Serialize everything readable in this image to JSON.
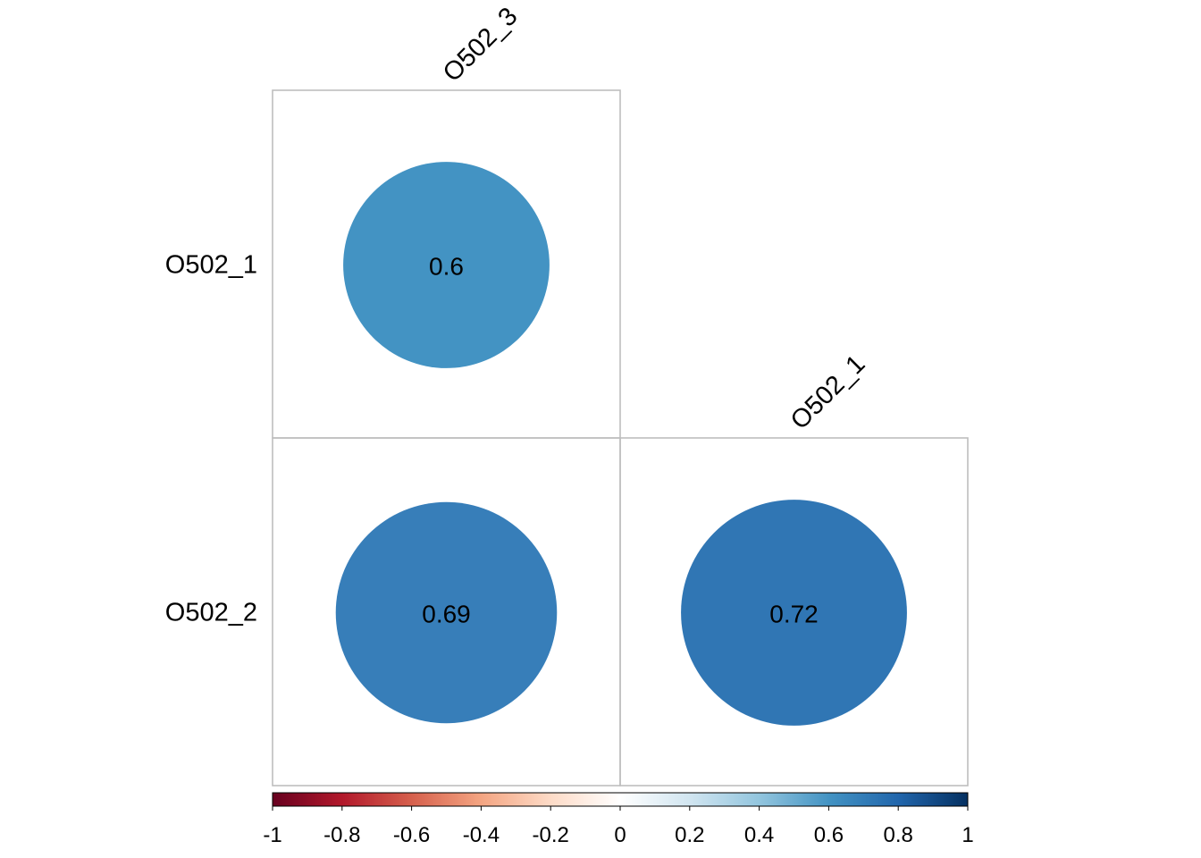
{
  "chart_data": {
    "type": "heatmap",
    "subtype": "correlation-plot (circles, lower triangle)",
    "col_labels": [
      "O502_3",
      "O502_1"
    ],
    "row_labels": [
      "O502_1",
      "O502_2"
    ],
    "cells": [
      {
        "row": "O502_1",
        "col": "O502_3",
        "value": 0.6,
        "label": "0.6",
        "color": "#4393C3"
      },
      {
        "row": "O502_2",
        "col": "O502_3",
        "value": 0.69,
        "label": "0.69",
        "color": "#377EB9"
      },
      {
        "row": "O502_2",
        "col": "O502_1",
        "value": 0.72,
        "label": "0.72",
        "color": "#3076B4"
      }
    ],
    "colorbar": {
      "range": [
        -1,
        1
      ],
      "ticks": [
        "-1",
        "-0.8",
        "-0.6",
        "-0.4",
        "-0.2",
        "0",
        "0.2",
        "0.4",
        "0.6",
        "0.8",
        "1"
      ],
      "colors": [
        "#67001F",
        "#B2182B",
        "#D6604D",
        "#F4A582",
        "#FDDBC7",
        "#FFFFFF",
        "#D1E5F0",
        "#92C5DE",
        "#4393C3",
        "#2166AC",
        "#053061"
      ],
      "position": "bottom"
    },
    "grid": true,
    "grid_color": "#BEBEBE"
  }
}
